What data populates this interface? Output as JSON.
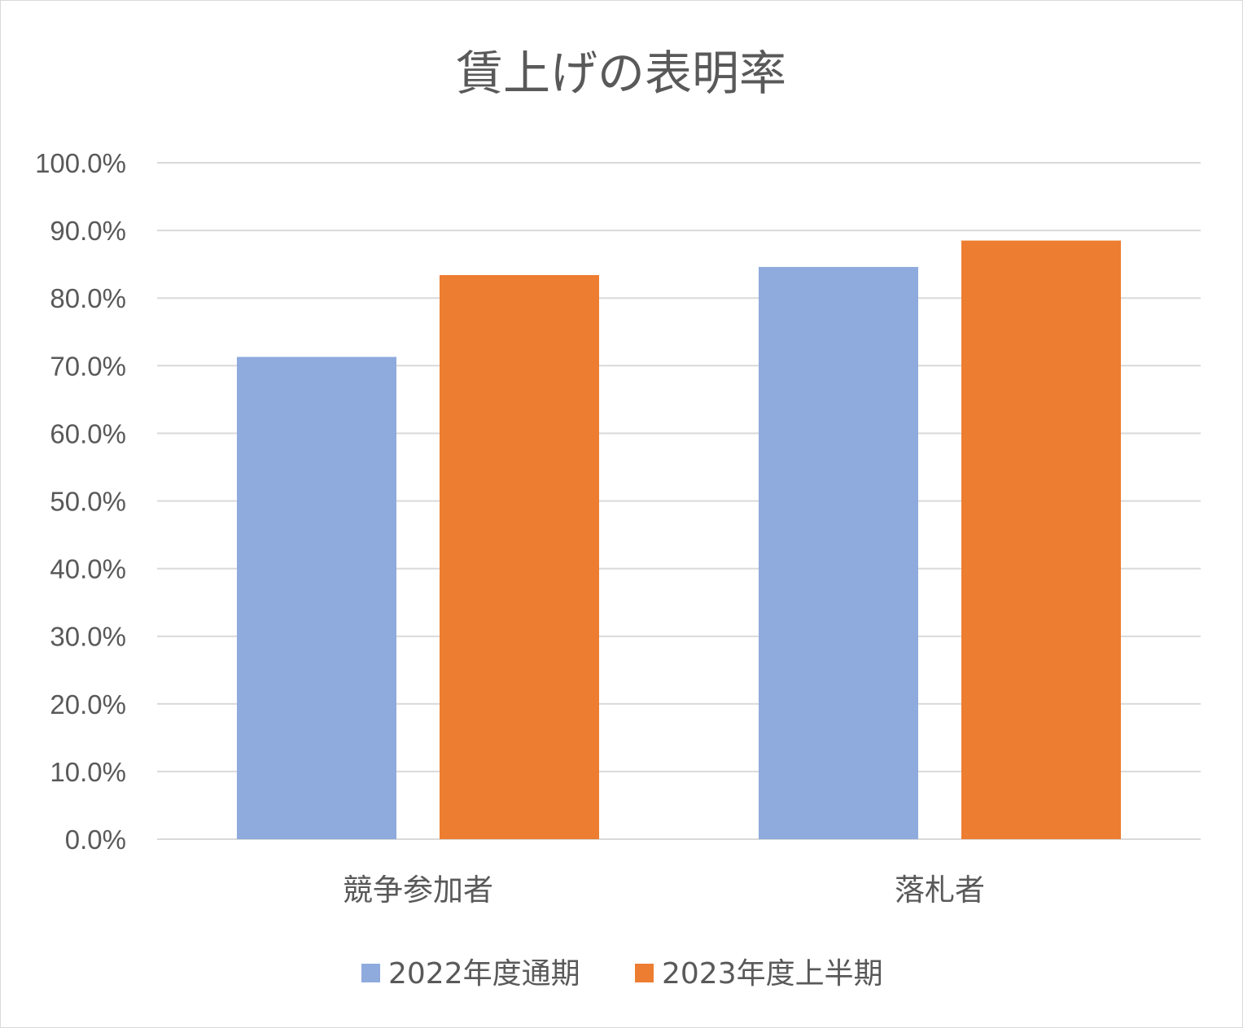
{
  "chart_data": {
    "type": "bar",
    "title": "賃上げの表明率",
    "categories": [
      "競争参加者",
      "落札者"
    ],
    "series": [
      {
        "name": "2022年度通期",
        "color": "#8faadc",
        "values": [
          71.3,
          84.6
        ]
      },
      {
        "name": "2023年度上半期",
        "color": "#ed7d31",
        "values": [
          83.4,
          88.5
        ]
      }
    ],
    "ylim": [
      0,
      100
    ],
    "yticks": [
      "0.0%",
      "10.0%",
      "20.0%",
      "30.0%",
      "40.0%",
      "50.0%",
      "60.0%",
      "70.0%",
      "80.0%",
      "90.0%",
      "100.0%"
    ],
    "grid": true,
    "legend_position": "bottom",
    "gridline_color": "#d9d9d9",
    "text_color": "#595959"
  }
}
